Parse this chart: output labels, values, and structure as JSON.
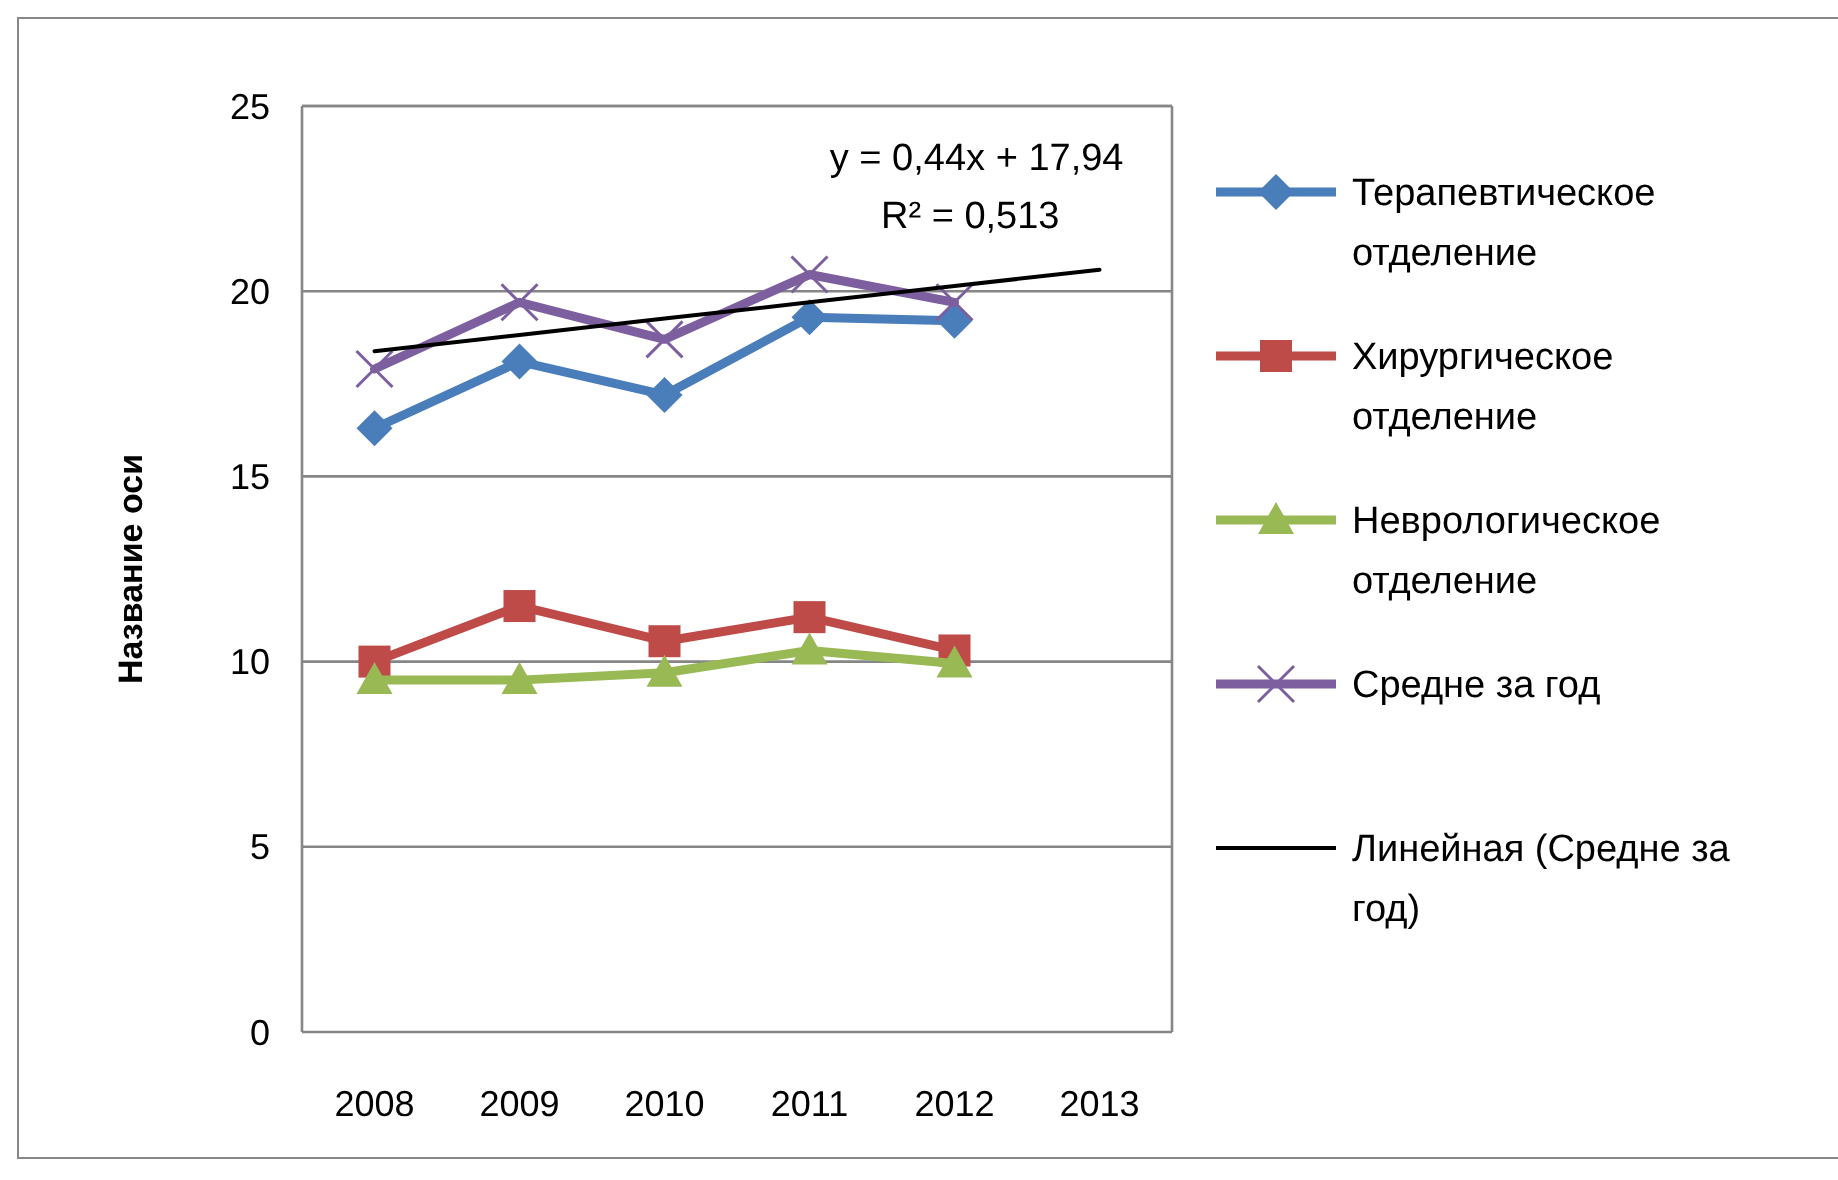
{
  "chart_data": {
    "type": "line",
    "ylabel": "Название оси",
    "categories": [
      "2008",
      "2009",
      "2010",
      "2011",
      "2012",
      "2013"
    ],
    "ylim": [
      0,
      25
    ],
    "yticks": [
      0,
      5,
      10,
      15,
      20,
      25
    ],
    "grid": "y",
    "legend": "right",
    "series": [
      {
        "name": "Терапевтическое отделение",
        "color": "#4a7ebb",
        "marker": "diamond",
        "values": [
          16.3,
          18.1,
          17.2,
          19.3,
          19.2,
          null
        ]
      },
      {
        "name": "Хирургическое отделение",
        "color": "#be4b48",
        "marker": "square",
        "values": [
          10.0,
          11.5,
          10.55,
          11.2,
          10.3,
          null
        ]
      },
      {
        "name": "Неврологическое отделение",
        "color": "#98b954",
        "marker": "triangle",
        "values": [
          9.5,
          9.5,
          9.7,
          10.3,
          9.95,
          null
        ]
      },
      {
        "name": "Средне за год",
        "color": "#7d5fa0",
        "marker": "cross",
        "values": [
          17.9,
          19.7,
          18.7,
          20.45,
          19.7,
          null
        ]
      },
      {
        "name": "Линейная (Средне за год)",
        "color": "#000000",
        "marker": "none",
        "values": [
          18.38,
          18.82,
          19.26,
          19.7,
          20.14,
          20.58
        ]
      }
    ],
    "annotations": [
      "y = 0,44x + 17,94",
      "R² = 0,513"
    ]
  }
}
